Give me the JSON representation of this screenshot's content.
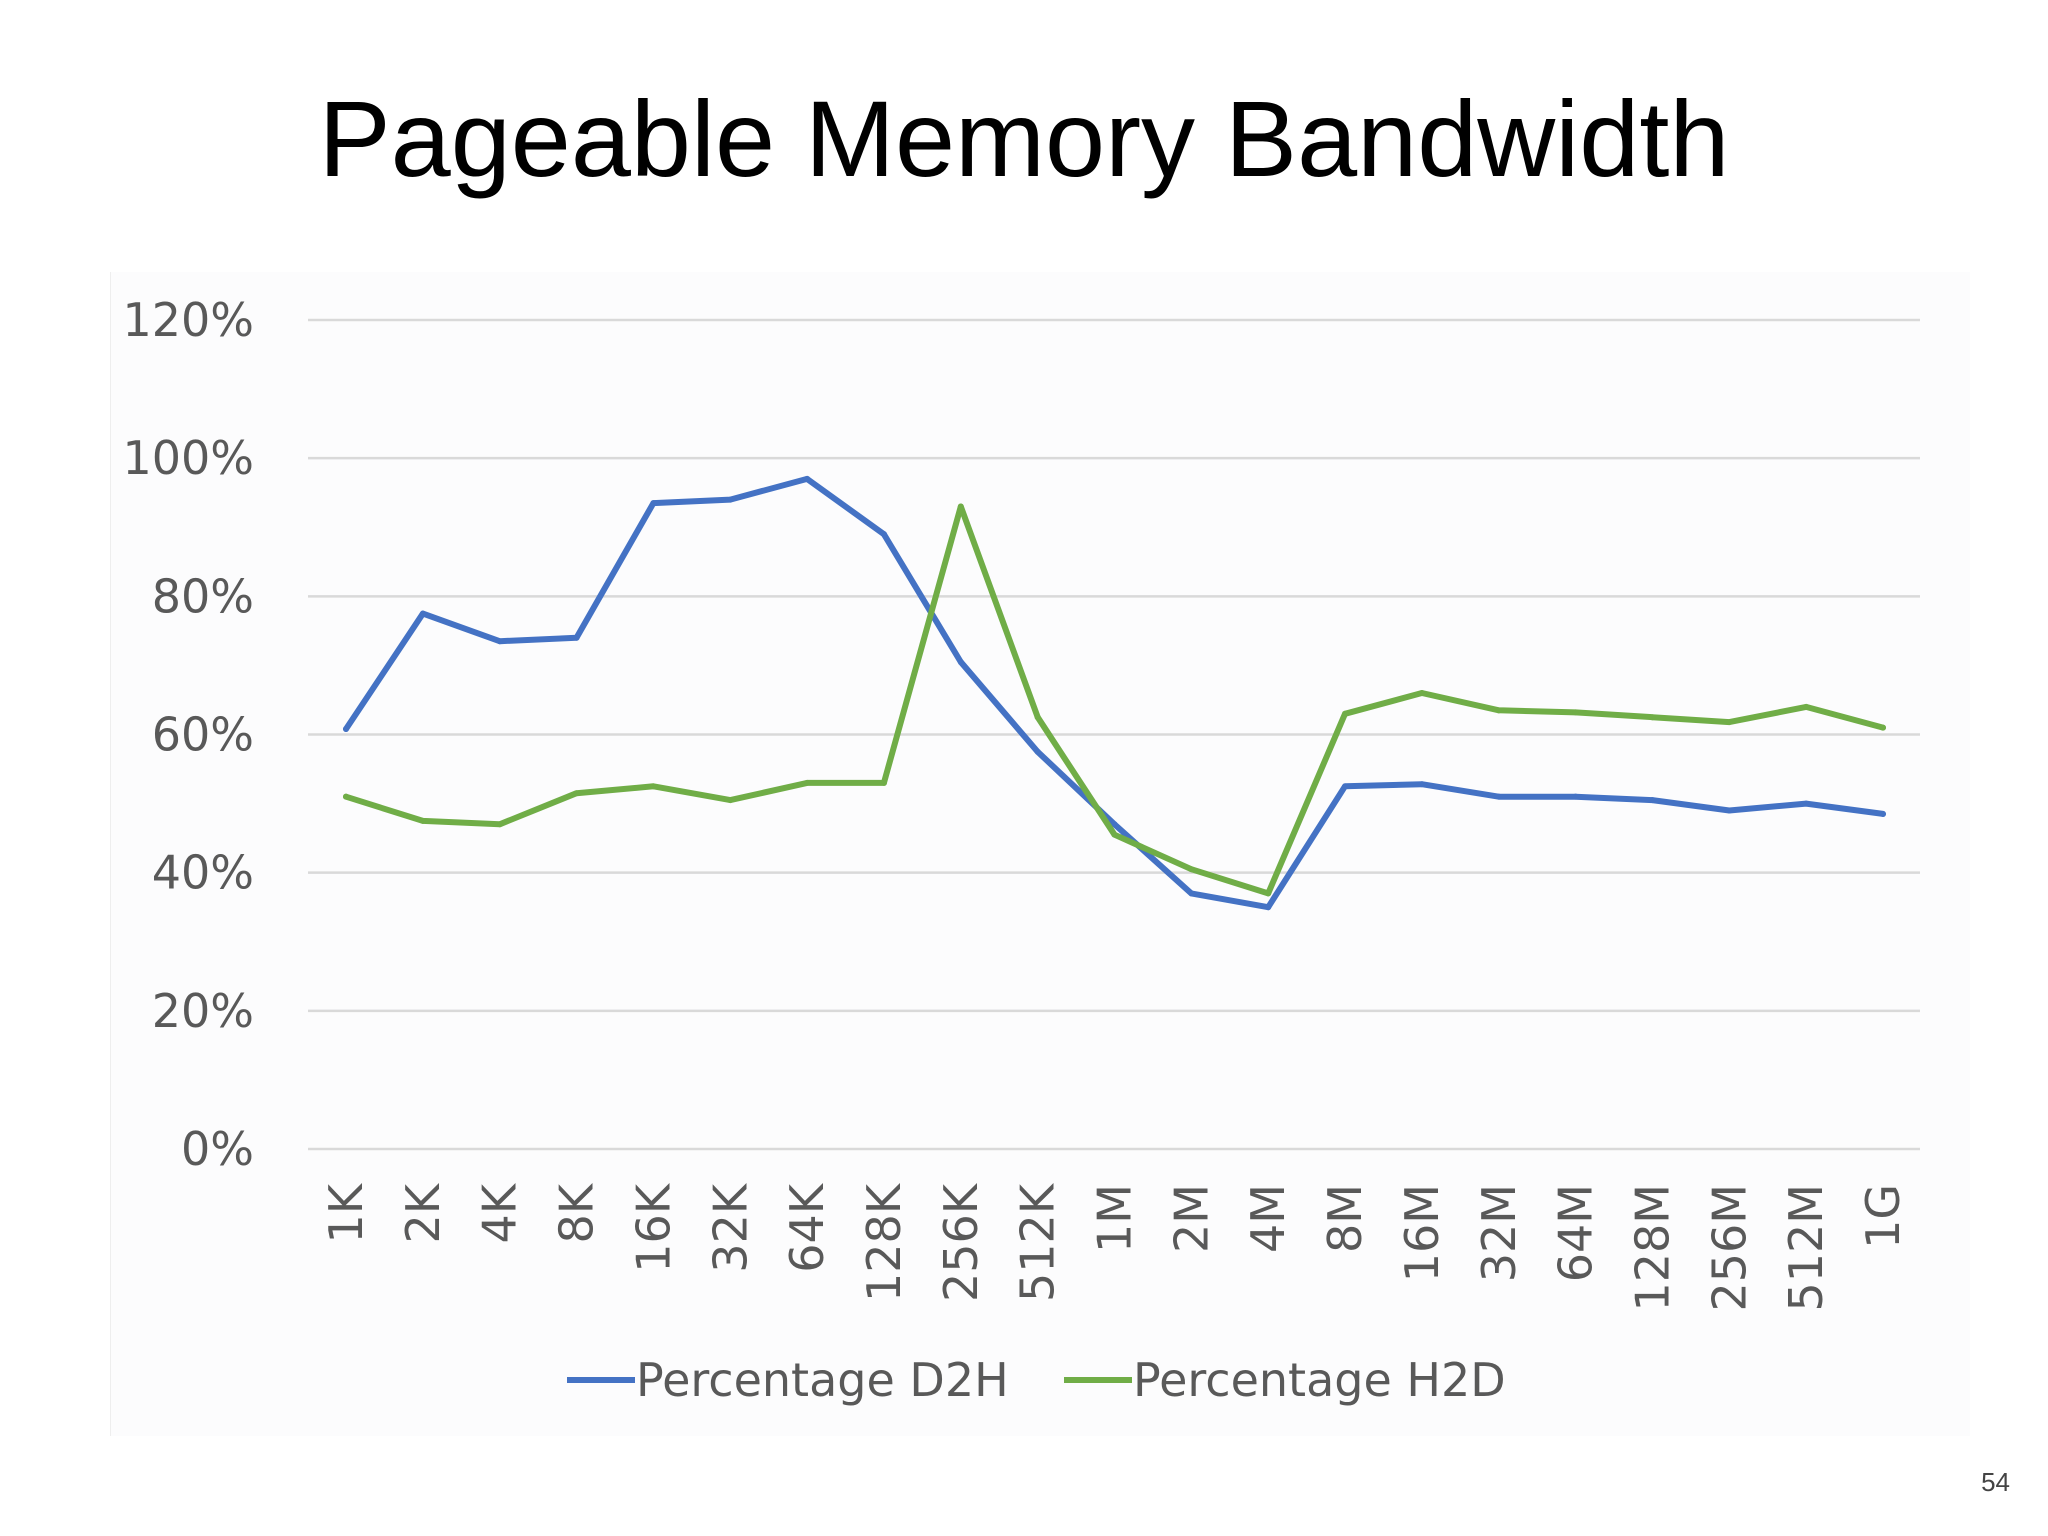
{
  "slide": {
    "title": "Pageable Memory Bandwidth",
    "page_number": "54"
  },
  "colors": {
    "d2h": "#4472c4",
    "h2d": "#70ad47",
    "grid": "#d9d9d9",
    "tick_text": "#595959"
  },
  "chart_data": {
    "type": "line",
    "title": "",
    "xlabel": "",
    "ylabel": "",
    "categories": [
      "1K",
      "2K",
      "4K",
      "8K",
      "16K",
      "32K",
      "64K",
      "128K",
      "256K",
      "512K",
      "1M",
      "2M",
      "4M",
      "8M",
      "16M",
      "32M",
      "64M",
      "128M",
      "256M",
      "512M",
      "1G"
    ],
    "y_ticks": [
      "0%",
      "20%",
      "40%",
      "60%",
      "80%",
      "100%",
      "120%"
    ],
    "ylim": [
      0,
      120
    ],
    "grid": true,
    "legend_position": "bottom",
    "series": [
      {
        "name": "Percentage D2H",
        "color": "#4472c4",
        "values": [
          60.8,
          77.5,
          73.5,
          74.0,
          93.5,
          94.0,
          97.0,
          89.0,
          70.5,
          57.5,
          47.0,
          37.0,
          35.0,
          52.5,
          52.8,
          51.0,
          51.0,
          50.5,
          49.0,
          50.0,
          48.5
        ]
      },
      {
        "name": "Percentage H2D",
        "color": "#70ad47",
        "values": [
          51.0,
          47.5,
          47.0,
          51.5,
          52.5,
          50.5,
          53.0,
          53.0,
          93.0,
          62.5,
          45.5,
          40.5,
          37.0,
          63.0,
          66.0,
          63.5,
          63.2,
          62.5,
          61.8,
          64.0,
          61.0
        ]
      }
    ]
  }
}
